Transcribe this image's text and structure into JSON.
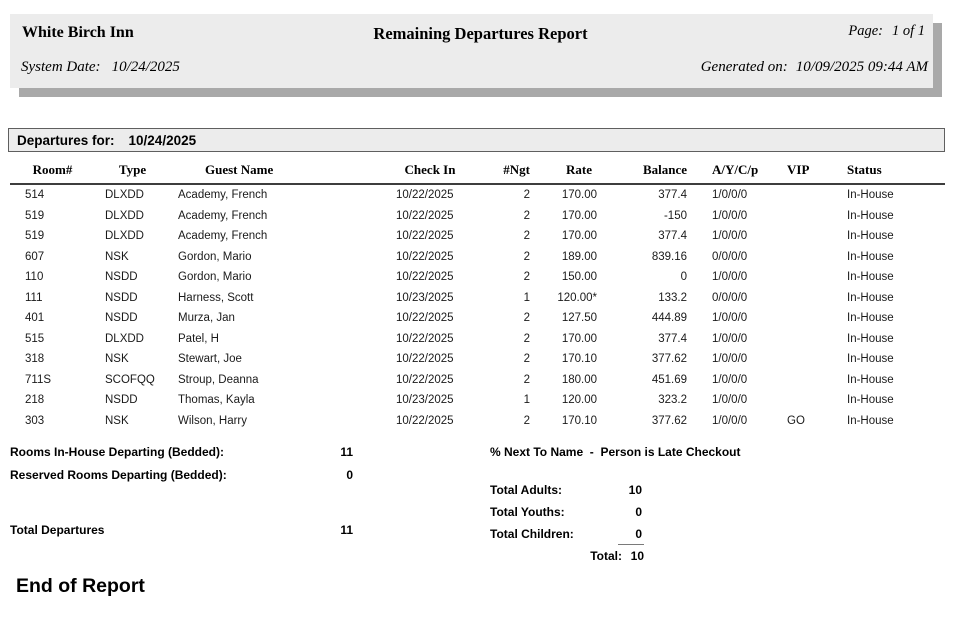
{
  "header": {
    "hotel_name": "White Birch Inn",
    "report_title": "Remaining Departures Report",
    "page_label": "Page:",
    "page_value": "1 of 1",
    "system_date_label": "System Date:",
    "system_date_value": "10/24/2025",
    "generated_label": "Generated on:",
    "generated_value": "10/09/2025 09:44 AM"
  },
  "section_bar": {
    "label": "Departures for:",
    "date": "10/24/2025"
  },
  "table": {
    "columns": [
      "Room#",
      "Type",
      "Guest Name",
      "Check In",
      "#Ngt",
      "Rate",
      "Balance",
      "A/Y/C/p",
      "VIP",
      "Status"
    ],
    "rows": [
      [
        "514",
        "DLXDD",
        "Academy, French",
        "10/22/2025",
        "2",
        "170.00",
        "377.4",
        "1/0/0/0",
        "",
        "In-House"
      ],
      [
        "519",
        "DLXDD",
        "Academy, French",
        "10/22/2025",
        "2",
        "170.00",
        "-150",
        "1/0/0/0",
        "",
        "In-House"
      ],
      [
        "519",
        "DLXDD",
        "Academy, French",
        "10/22/2025",
        "2",
        "170.00",
        "377.4",
        "1/0/0/0",
        "",
        "In-House"
      ],
      [
        "607",
        "NSK",
        "Gordon, Mario",
        "10/22/2025",
        "2",
        "189.00",
        "839.16",
        "0/0/0/0",
        "",
        "In-House"
      ],
      [
        "110",
        "NSDD",
        "Gordon, Mario",
        "10/22/2025",
        "2",
        "150.00",
        "0",
        "1/0/0/0",
        "",
        "In-House"
      ],
      [
        "111",
        "NSDD",
        "Harness, Scott",
        "10/23/2025",
        "1",
        "120.00*",
        "133.2",
        "0/0/0/0",
        "",
        "In-House"
      ],
      [
        "401",
        "NSDD",
        "Murza, Jan",
        "10/22/2025",
        "2",
        "127.50",
        "444.89",
        "1/0/0/0",
        "",
        "In-House"
      ],
      [
        "515",
        "DLXDD",
        "Patel, H",
        "10/22/2025",
        "2",
        "170.00",
        "377.4",
        "1/0/0/0",
        "",
        "In-House"
      ],
      [
        "318",
        "NSK",
        "Stewart, Joe",
        "10/22/2025",
        "2",
        "170.10",
        "377.62",
        "1/0/0/0",
        "",
        "In-House"
      ],
      [
        "711S",
        "SCOFQQ",
        "Stroup, Deanna",
        "10/22/2025",
        "2",
        "180.00",
        "451.69",
        "1/0/0/0",
        "",
        "In-House"
      ],
      [
        "218",
        "NSDD",
        "Thomas, Kayla",
        "10/23/2025",
        "1",
        "120.00",
        "323.2",
        "1/0/0/0",
        "",
        "In-House"
      ],
      [
        "303",
        "NSK",
        "Wilson, Harry",
        "10/22/2025",
        "2",
        "170.10",
        "377.62",
        "1/0/0/0",
        "GO",
        "In-House"
      ]
    ]
  },
  "summary_left": {
    "rows": [
      {
        "label": "Rooms In-House Departing (Bedded):",
        "value": "11"
      },
      {
        "label": "Reserved Rooms Departing (Bedded):",
        "value": "0"
      },
      {
        "label": "Total Departures",
        "value": "11"
      }
    ]
  },
  "note": "% Next To Name  -  Person is Late Checkout",
  "summary_right": {
    "rows": [
      {
        "label": "Total Adults:",
        "value": "10"
      },
      {
        "label": "Total Youths:",
        "value": "0"
      },
      {
        "label": "Total Children:",
        "value": "0"
      }
    ],
    "total_label": "Total:",
    "total_value": "10"
  },
  "end_of_report": "End of Report",
  "colors": {
    "header_box_bg": "#ececec",
    "header_box_shadow": "#a9a9a9",
    "section_bar_bg": "#ececec",
    "section_bar_border": "#5f5f5f",
    "header_rule": "#3d3d3d",
    "text": "#000000"
  }
}
